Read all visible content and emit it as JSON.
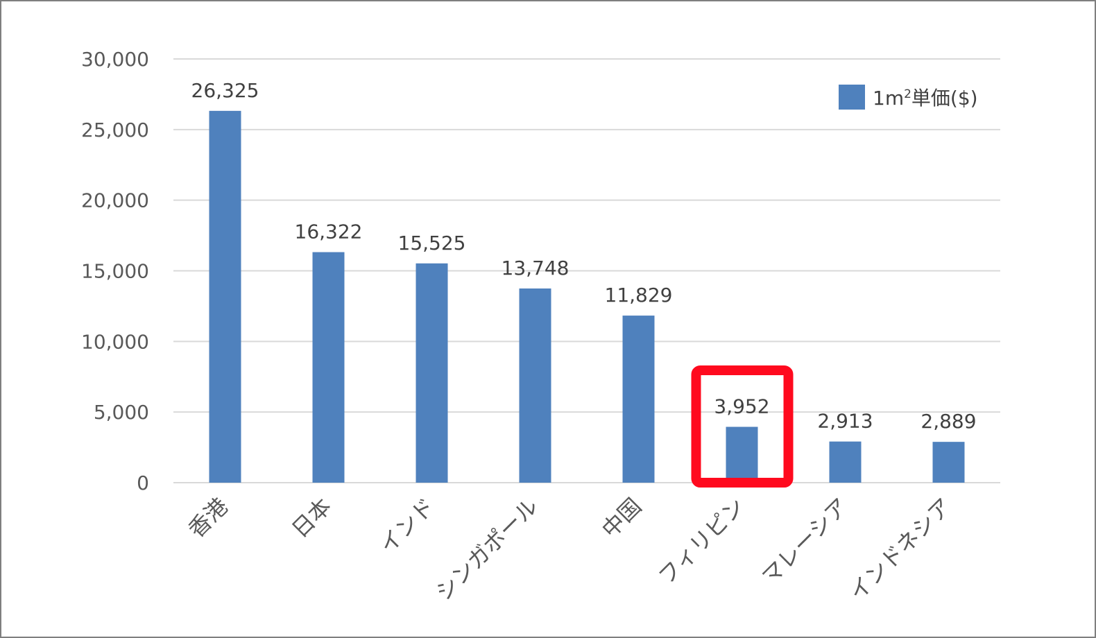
{
  "chart_data": {
    "type": "bar",
    "title": "",
    "xlabel": "",
    "ylabel": "",
    "categories": [
      "香港",
      "日本",
      "インド",
      "シンガポール",
      "中国",
      "フィリピン",
      "マレーシア",
      "インドネシア"
    ],
    "series": [
      {
        "name": "1m²単価($)",
        "values": [
          26325,
          16322,
          15525,
          13748,
          11829,
          3952,
          2913,
          2889
        ],
        "value_labels": [
          "26,325",
          "16,322",
          "15,525",
          "13,748",
          "11,829",
          "3,952",
          "2,913",
          "2,889"
        ],
        "color": "#4f81bd"
      }
    ],
    "ylim": [
      0,
      30000
    ],
    "yticks": [
      0,
      5000,
      10000,
      15000,
      20000,
      25000,
      30000
    ],
    "ytick_labels": [
      "0",
      "5,000",
      "10,000",
      "15,000",
      "20,000",
      "25,000",
      "30,000"
    ],
    "grid": true,
    "gridline_color": "#d9d9d9",
    "legend": {
      "placement": "top-right",
      "label_main": "1m",
      "label_sup": "2",
      "label_rest": "単価($)"
    },
    "highlight": {
      "category": "フィリピン",
      "color": "#ff0a1e"
    }
  }
}
